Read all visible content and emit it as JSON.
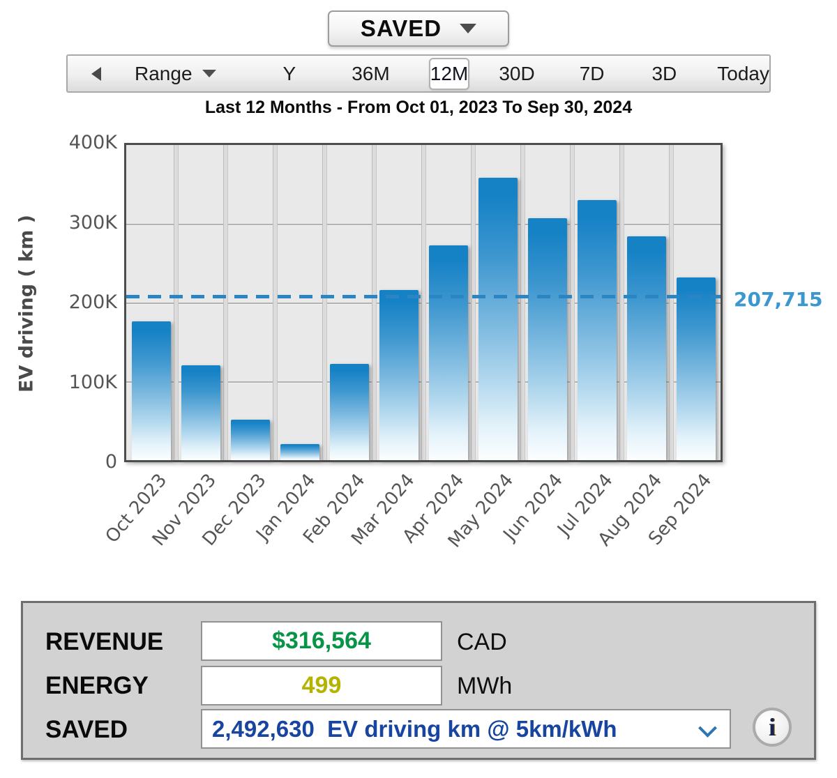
{
  "view_selector": {
    "label": "SAVED"
  },
  "toolbar": {
    "range_label": "Range",
    "items": [
      "Y",
      "36M",
      "12M",
      "30D",
      "7D",
      "3D",
      "Today"
    ],
    "selected": "12M"
  },
  "subtitle": "Last 12 Months - From Oct 01, 2023 To Sep 30, 2024",
  "chart_data": {
    "type": "bar",
    "ylabel": "EV driving ( km )",
    "categories": [
      "Oct 2023",
      "Nov 2023",
      "Dec 2023",
      "Jan 2024",
      "Feb 2024",
      "Mar 2024",
      "Apr 2024",
      "May 2024",
      "Jun 2024",
      "Jul 2024",
      "Aug 2024",
      "Sep 2024"
    ],
    "values": [
      176000,
      120000,
      51000,
      20000,
      122000,
      216000,
      273000,
      358000,
      307000,
      330000,
      284000,
      232000
    ],
    "ylim": [
      0,
      400000
    ],
    "ytick_labels": [
      "400K",
      "300K",
      "200K",
      "100K",
      "0"
    ],
    "grid": "horizontal",
    "average_line": {
      "value": 207715,
      "label": "207,715",
      "color": "#2a85c2",
      "label_color": "#3a97d0"
    },
    "bar_color_top": "#1682c6",
    "bar_color_bottom": "#fbfeff"
  },
  "summary": {
    "revenue": {
      "label": "REVENUE",
      "value": "$316,564",
      "unit": "CAD",
      "value_color": "#089447"
    },
    "energy": {
      "label": "ENERGY",
      "value": "499",
      "unit": "MWh",
      "value_color": "#b3b300"
    },
    "saved": {
      "label": "SAVED",
      "value": "2,492,630  EV driving km @ 5km/kWh",
      "value_color": "#17459f"
    },
    "info_icon": "i"
  }
}
